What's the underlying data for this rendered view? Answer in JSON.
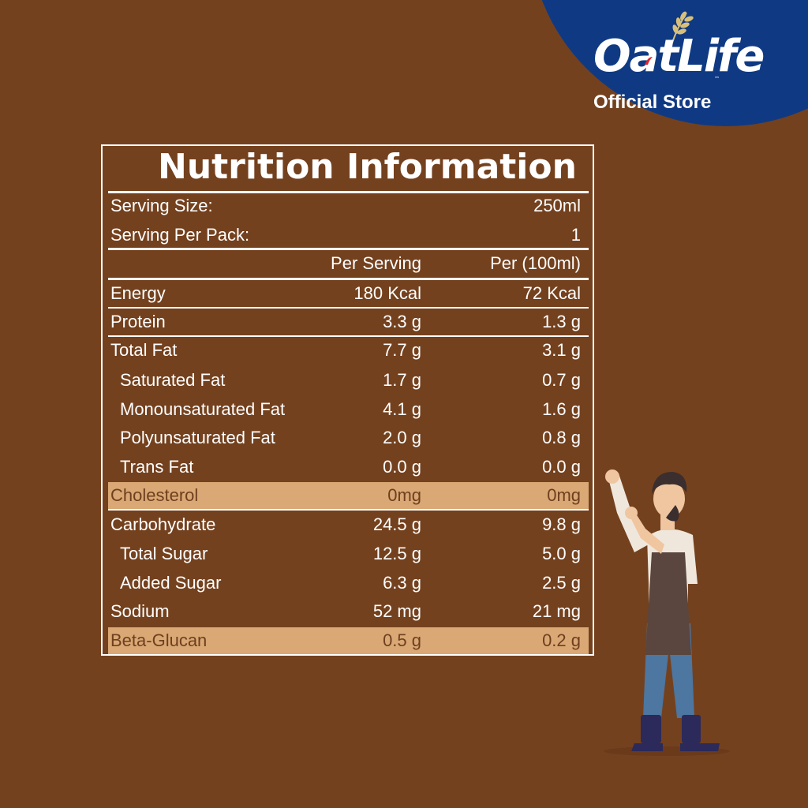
{
  "colors": {
    "background": "#74411e",
    "badge": "#0f3a83",
    "highlight": "#d9a874",
    "text": "#ffffff"
  },
  "brand": {
    "logo_text": "OatLife",
    "tm": "™",
    "subtitle": "Official Store"
  },
  "table": {
    "title": "Nutrition Information",
    "serving_size": {
      "label": "Serving Size:",
      "value": "250ml"
    },
    "serving_per_pack": {
      "label": "Serving Per Pack:",
      "value": "1"
    },
    "headers": {
      "per_serving": "Per Serving",
      "per_100ml": "Per (100ml)"
    },
    "rows": [
      {
        "label": "Energy",
        "per_serving": "180 Kcal",
        "per_100ml": "72 Kcal"
      },
      {
        "label": "Protein",
        "per_serving": "3.3 g",
        "per_100ml": "1.3 g"
      },
      {
        "label": "Total Fat",
        "per_serving": "7.7 g",
        "per_100ml": "3.1 g"
      },
      {
        "label": "Saturated Fat",
        "per_serving": "1.7 g",
        "per_100ml": "0.7 g"
      },
      {
        "label": "Monounsaturated Fat",
        "per_serving": "4.1 g",
        "per_100ml": "1.6 g"
      },
      {
        "label": "Polyunsaturated Fat",
        "per_serving": "2.0 g",
        "per_100ml": "0.8 g"
      },
      {
        "label": "Trans Fat",
        "per_serving": "0.0 g",
        "per_100ml": "0.0 g"
      },
      {
        "label": "Cholesterol",
        "per_serving": "0mg",
        "per_100ml": "0mg"
      },
      {
        "label": "Carbohydrate",
        "per_serving": "24.5 g",
        "per_100ml": "9.8 g"
      },
      {
        "label": "Total Sugar",
        "per_serving": "12.5 g",
        "per_100ml": "5.0 g"
      },
      {
        "label": "Added Sugar",
        "per_serving": "6.3 g",
        "per_100ml": "2.5 g"
      },
      {
        "label": "Sodium",
        "per_serving": "52 mg",
        "per_100ml": "21 mg"
      },
      {
        "label": "Beta-Glucan",
        "per_serving": "0.5 g",
        "per_100ml": "0.2 g"
      }
    ]
  }
}
